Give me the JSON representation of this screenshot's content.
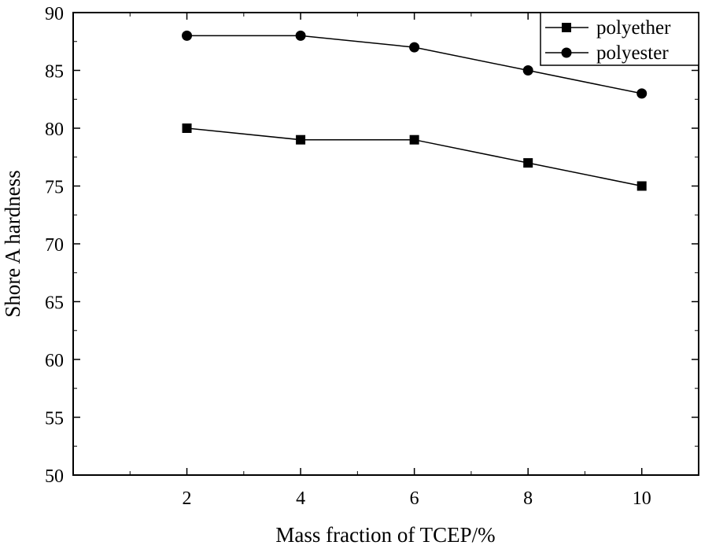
{
  "chart_data": {
    "type": "line",
    "title": "",
    "xlabel": "Mass fraction of TCEP/%",
    "ylabel": "Shore A hardness",
    "x": [
      2,
      4,
      6,
      8,
      10
    ],
    "xlim": [
      0,
      11
    ],
    "ylim": [
      50,
      90
    ],
    "xticks": [
      "2",
      "4",
      "6",
      "8",
      "10"
    ],
    "yticks": [
      "50",
      "55",
      "60",
      "65",
      "70",
      "75",
      "80",
      "85",
      "90"
    ],
    "grid": false,
    "legend_position": "top-right",
    "series": [
      {
        "name": "polyether",
        "marker": "square",
        "values": [
          80,
          79,
          79,
          77,
          75
        ]
      },
      {
        "name": "polyester",
        "marker": "circle",
        "values": [
          88,
          88,
          87,
          85,
          83
        ]
      }
    ]
  }
}
